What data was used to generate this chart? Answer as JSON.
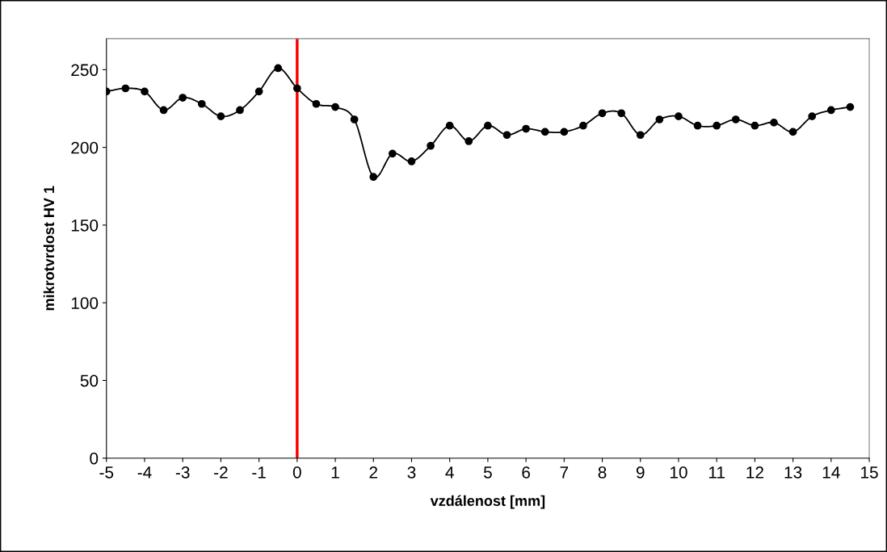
{
  "chart_data": {
    "type": "line",
    "xlabel": "vzdálenost [mm]",
    "ylabel": "mikrotvrdost HV 1",
    "x": [
      -5,
      -4.5,
      -4,
      -3.5,
      -3,
      -2.5,
      -2,
      -1.5,
      -1,
      -0.5,
      0,
      0.5,
      1,
      1.5,
      2,
      2.5,
      3,
      3.5,
      4,
      4.5,
      5,
      5.5,
      6,
      6.5,
      7,
      7.5,
      8,
      8.5,
      9,
      9.5,
      10,
      10.5,
      11,
      11.5,
      12,
      12.5,
      13,
      13.5,
      14,
      14.5
    ],
    "series": [
      {
        "color": "#000000",
        "values": [
          236,
          238,
          236,
          224,
          232,
          228,
          220,
          224,
          236,
          251,
          238,
          228,
          226,
          218,
          181,
          196,
          191,
          201,
          214,
          204,
          214,
          208,
          212,
          210,
          210,
          214,
          222,
          222,
          208,
          218,
          220,
          214,
          214,
          218,
          214,
          216,
          210,
          220,
          224,
          226
        ]
      }
    ],
    "xlim": [
      -5,
      15
    ],
    "xticks": [
      -5,
      -4,
      -3,
      -2,
      -1,
      0,
      1,
      2,
      3,
      4,
      5,
      6,
      7,
      8,
      9,
      10,
      11,
      12,
      13,
      14,
      15
    ],
    "ylim": [
      0,
      270
    ],
    "yticks": [
      0,
      50,
      100,
      150,
      200,
      250
    ],
    "ref_lines": [
      {
        "axis": "x",
        "value": 0,
        "color": "#ff0000",
        "line_style": "solid"
      }
    ],
    "grid": false,
    "legend": false,
    "marker": "circle",
    "line_style": "solid"
  }
}
